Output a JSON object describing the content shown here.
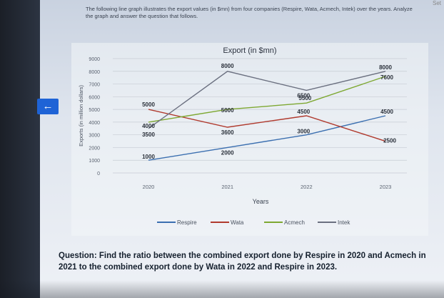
{
  "intro_text": "The following line graph illustrates the export values (in $mn) from four companies (Respire, Wata, Acmech, Intek) over the years. Analyze the graph and answer the question that follows.",
  "corner_text": "Set",
  "back_icon": "arrow-left-icon",
  "question": "Question: Find the ratio between the combined export done by Respire in 2020 and Acmech in 2021 to the combined export done by Wata in 2022 and Respire in 2023.",
  "colors": {
    "Respire": "#3b6fb0",
    "Wata": "#b03a2e",
    "Acmech": "#7ea832",
    "Intek": "#6b7080",
    "back_button": "#1e63d6"
  },
  "chart_data": {
    "type": "line",
    "title": "Export (in $mn)",
    "xlabel": "Years",
    "ylabel": "Exports (in million dollars)",
    "categories": [
      "2020",
      "2021",
      "2022",
      "2023"
    ],
    "y_ticks": [
      "0",
      "1000",
      "2000",
      "3000",
      "4000",
      "5000",
      "6000",
      "7000",
      "8000",
      "9000"
    ],
    "ylim": [
      0,
      9000
    ],
    "grid": true,
    "legend_position": "bottom",
    "series": [
      {
        "name": "Respire",
        "values": [
          1000,
          2000,
          3000,
          4500
        ]
      },
      {
        "name": "Wata",
        "values": [
          5000,
          3600,
          4500,
          2500
        ]
      },
      {
        "name": "Acmech",
        "values": [
          4000,
          5000,
          5500,
          7600
        ]
      },
      {
        "name": "Intek",
        "values": [
          3500,
          8000,
          6500,
          8000
        ]
      }
    ],
    "data_labels": [
      {
        "text": "5000",
        "series": "Wata",
        "index": 0
      },
      {
        "text": "4000",
        "series": "Acmech",
        "index": 0
      },
      {
        "text": "3500",
        "series": "Intek",
        "index": 0
      },
      {
        "text": "1000",
        "series": "Respire",
        "index": 0
      },
      {
        "text": "8000",
        "series": "Intek",
        "index": 1
      },
      {
        "text": "5000",
        "series": "Acmech",
        "index": 1
      },
      {
        "text": "3600",
        "series": "Wata",
        "index": 1
      },
      {
        "text": "2000",
        "series": "Respire",
        "index": 1
      },
      {
        "text": "6500",
        "series": "Intek",
        "index": 2
      },
      {
        "text": "5500",
        "series": "Acmech",
        "index": 2
      },
      {
        "text": "4500",
        "series": "Wata",
        "index": 2
      },
      {
        "text": "3000",
        "series": "Respire",
        "index": 2
      },
      {
        "text": "8000",
        "series": "Intek",
        "index": 3
      },
      {
        "text": "7600",
        "series": "Acmech",
        "index": 3
      },
      {
        "text": "4500",
        "series": "Respire",
        "index": 3
      },
      {
        "text": "2500",
        "series": "Wata",
        "index": 3
      }
    ]
  }
}
